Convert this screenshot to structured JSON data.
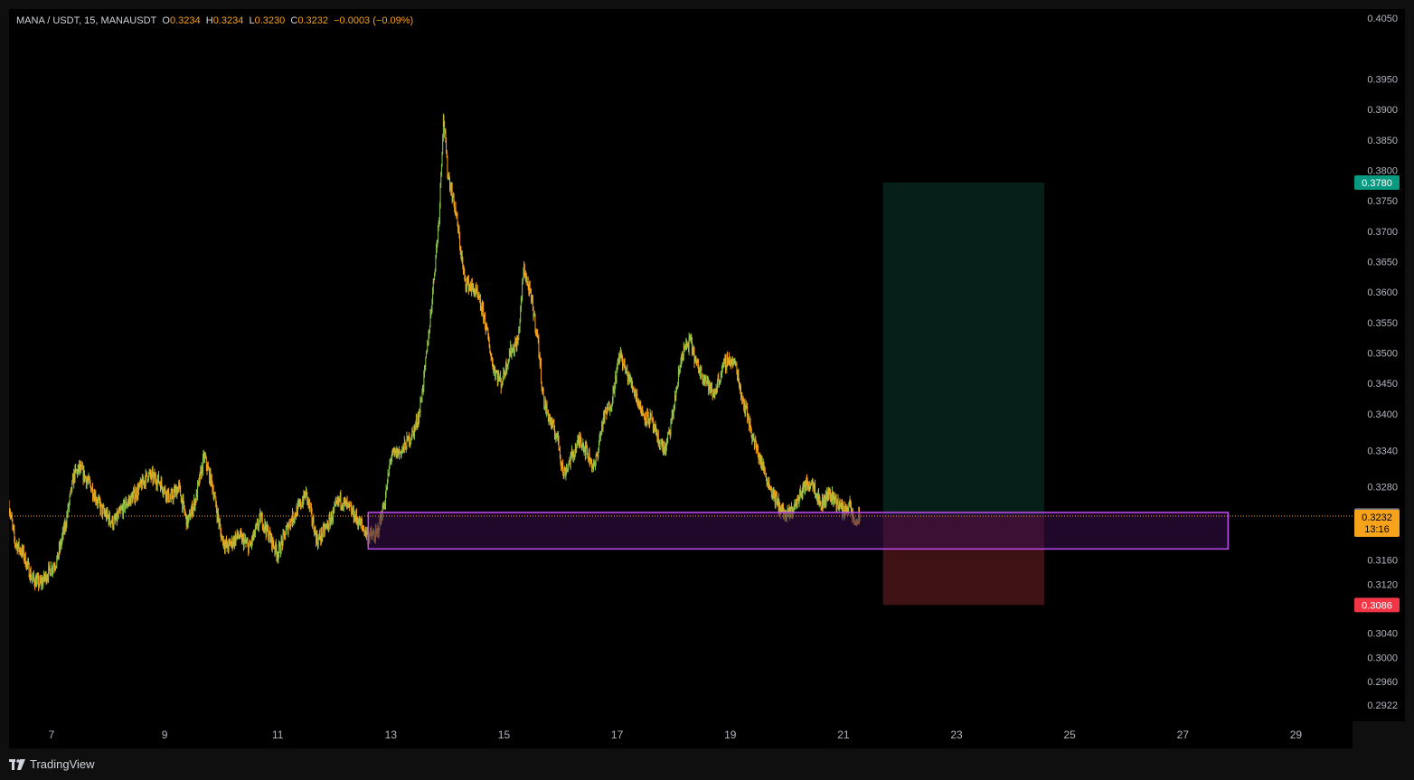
{
  "header": {
    "symbol_line": "MANA / USDT, 15, MANAUSDT",
    "open_label": "O",
    "open": "0.3234",
    "high_label": "H",
    "high": "0.3234",
    "low_label": "L",
    "low": "0.3230",
    "close_label": "C",
    "close": "0.3232",
    "change": "−0.0003 (−0.09%)"
  },
  "footer": {
    "brand": "TradingView",
    "brand_icon": "tradingview-logo-icon"
  },
  "colors": {
    "background": "#000000",
    "up": "#8bc34a",
    "down": "#f7a21b",
    "target_zone": "#0b3a2e",
    "stop_zone": "#5a1a1e",
    "support_zone_border": "#c04cf0",
    "support_zone_fill": "#3b0f4f",
    "target_label": "#089981",
    "stop_label": "#f23645",
    "last_price_label": "#f7a21b",
    "marker_label": "#787b86"
  },
  "chart_data": {
    "type": "candlestick",
    "interval": "15",
    "x_unit": "day of month",
    "x_range": [
      6.25,
      30.0
    ],
    "y_range": [
      0.2895,
      0.4065
    ],
    "grid": false,
    "y_ticks": [
      "0.4050",
      "0.3950",
      "0.3900",
      "0.3850",
      "0.3800",
      "0.3750",
      "0.3700",
      "0.3650",
      "0.3600",
      "0.3550",
      "0.3500",
      "0.3450",
      "0.3400",
      "0.3340",
      "0.3280",
      "0.3160",
      "0.3120",
      "0.3040",
      "0.3000",
      "0.2960",
      "0.2922"
    ],
    "x_ticks": [
      "7",
      "9",
      "11",
      "13",
      "15",
      "17",
      "19",
      "21",
      "23",
      "25",
      "27",
      "29"
    ],
    "price_path": [
      {
        "x": 6.25,
        "y": 0.325
      },
      {
        "x": 6.35,
        "y": 0.319
      },
      {
        "x": 6.5,
        "y": 0.317
      },
      {
        "x": 6.65,
        "y": 0.313
      },
      {
        "x": 6.8,
        "y": 0.312
      },
      {
        "x": 6.95,
        "y": 0.314
      },
      {
        "x": 7.1,
        "y": 0.316
      },
      {
        "x": 7.25,
        "y": 0.322
      },
      {
        "x": 7.4,
        "y": 0.33
      },
      {
        "x": 7.5,
        "y": 0.331
      },
      {
        "x": 7.7,
        "y": 0.328
      },
      {
        "x": 7.9,
        "y": 0.324
      },
      {
        "x": 8.1,
        "y": 0.322
      },
      {
        "x": 8.3,
        "y": 0.325
      },
      {
        "x": 8.5,
        "y": 0.327
      },
      {
        "x": 8.7,
        "y": 0.33
      },
      {
        "x": 8.9,
        "y": 0.329
      },
      {
        "x": 9.1,
        "y": 0.326
      },
      {
        "x": 9.25,
        "y": 0.328
      },
      {
        "x": 9.4,
        "y": 0.322
      },
      {
        "x": 9.55,
        "y": 0.326
      },
      {
        "x": 9.7,
        "y": 0.333
      },
      {
        "x": 9.85,
        "y": 0.328
      },
      {
        "x": 10.0,
        "y": 0.32
      },
      {
        "x": 10.1,
        "y": 0.318
      },
      {
        "x": 10.3,
        "y": 0.32
      },
      {
        "x": 10.5,
        "y": 0.318
      },
      {
        "x": 10.7,
        "y": 0.323
      },
      {
        "x": 10.9,
        "y": 0.319
      },
      {
        "x": 11.0,
        "y": 0.317
      },
      {
        "x": 11.2,
        "y": 0.322
      },
      {
        "x": 11.4,
        "y": 0.325
      },
      {
        "x": 11.5,
        "y": 0.327
      },
      {
        "x": 11.7,
        "y": 0.319
      },
      {
        "x": 11.9,
        "y": 0.322
      },
      {
        "x": 12.1,
        "y": 0.326
      },
      {
        "x": 12.3,
        "y": 0.324
      },
      {
        "x": 12.45,
        "y": 0.322
      },
      {
        "x": 12.6,
        "y": 0.32
      },
      {
        "x": 12.75,
        "y": 0.32
      },
      {
        "x": 12.9,
        "y": 0.326
      },
      {
        "x": 13.0,
        "y": 0.333
      },
      {
        "x": 13.2,
        "y": 0.334
      },
      {
        "x": 13.4,
        "y": 0.337
      },
      {
        "x": 13.5,
        "y": 0.34
      },
      {
        "x": 13.6,
        "y": 0.347
      },
      {
        "x": 13.7,
        "y": 0.356
      },
      {
        "x": 13.85,
        "y": 0.372
      },
      {
        "x": 13.93,
        "y": 0.389
      },
      {
        "x": 14.0,
        "y": 0.38
      },
      {
        "x": 14.15,
        "y": 0.373
      },
      {
        "x": 14.3,
        "y": 0.362
      },
      {
        "x": 14.5,
        "y": 0.36
      },
      {
        "x": 14.65,
        "y": 0.356
      },
      {
        "x": 14.8,
        "y": 0.348
      },
      {
        "x": 14.95,
        "y": 0.345
      },
      {
        "x": 15.1,
        "y": 0.35
      },
      {
        "x": 15.25,
        "y": 0.352
      },
      {
        "x": 15.35,
        "y": 0.364
      },
      {
        "x": 15.5,
        "y": 0.358
      },
      {
        "x": 15.6,
        "y": 0.352
      },
      {
        "x": 15.7,
        "y": 0.342
      },
      {
        "x": 15.85,
        "y": 0.338
      },
      {
        "x": 15.95,
        "y": 0.336
      },
      {
        "x": 16.05,
        "y": 0.33
      },
      {
        "x": 16.2,
        "y": 0.333
      },
      {
        "x": 16.35,
        "y": 0.336
      },
      {
        "x": 16.5,
        "y": 0.333
      },
      {
        "x": 16.6,
        "y": 0.331
      },
      {
        "x": 16.75,
        "y": 0.339
      },
      {
        "x": 16.9,
        "y": 0.342
      },
      {
        "x": 17.05,
        "y": 0.35
      },
      {
        "x": 17.15,
        "y": 0.347
      },
      {
        "x": 17.3,
        "y": 0.344
      },
      {
        "x": 17.45,
        "y": 0.34
      },
      {
        "x": 17.6,
        "y": 0.339
      },
      {
        "x": 17.7,
        "y": 0.336
      },
      {
        "x": 17.85,
        "y": 0.334
      },
      {
        "x": 17.95,
        "y": 0.338
      },
      {
        "x": 18.05,
        "y": 0.344
      },
      {
        "x": 18.15,
        "y": 0.35
      },
      {
        "x": 18.3,
        "y": 0.352
      },
      {
        "x": 18.4,
        "y": 0.348
      },
      {
        "x": 18.55,
        "y": 0.346
      },
      {
        "x": 18.7,
        "y": 0.343
      },
      {
        "x": 18.85,
        "y": 0.347
      },
      {
        "x": 18.95,
        "y": 0.349
      },
      {
        "x": 19.1,
        "y": 0.348
      },
      {
        "x": 19.2,
        "y": 0.343
      },
      {
        "x": 19.3,
        "y": 0.34
      },
      {
        "x": 19.4,
        "y": 0.336
      },
      {
        "x": 19.55,
        "y": 0.332
      },
      {
        "x": 19.7,
        "y": 0.328
      },
      {
        "x": 19.85,
        "y": 0.325
      },
      {
        "x": 20.0,
        "y": 0.323
      },
      {
        "x": 20.15,
        "y": 0.325
      },
      {
        "x": 20.3,
        "y": 0.328
      },
      {
        "x": 20.45,
        "y": 0.329
      },
      {
        "x": 20.6,
        "y": 0.325
      },
      {
        "x": 20.75,
        "y": 0.327
      },
      {
        "x": 20.85,
        "y": 0.326
      },
      {
        "x": 21.0,
        "y": 0.324
      },
      {
        "x": 21.1,
        "y": 0.325
      },
      {
        "x": 21.2,
        "y": 0.322
      },
      {
        "x": 21.3,
        "y": 0.3232
      }
    ],
    "annotations": {
      "support_zone": {
        "x_start": 12.6,
        "x_end": 27.8,
        "y_low": 0.3178,
        "y_high": 0.3238
      },
      "target_zone": {
        "x_start": 21.7,
        "x_end": 24.55,
        "y_low": 0.3233,
        "y_high": 0.378
      },
      "stop_zone": {
        "x_start": 21.7,
        "x_end": 24.55,
        "y_low": 0.3086,
        "y_high": 0.3233
      },
      "last_price_line": 0.3232
    },
    "price_labels": {
      "target": "0.3780",
      "stop": "0.3086",
      "entry": "0.3233",
      "last": "0.3232",
      "countdown": "13:16"
    }
  }
}
